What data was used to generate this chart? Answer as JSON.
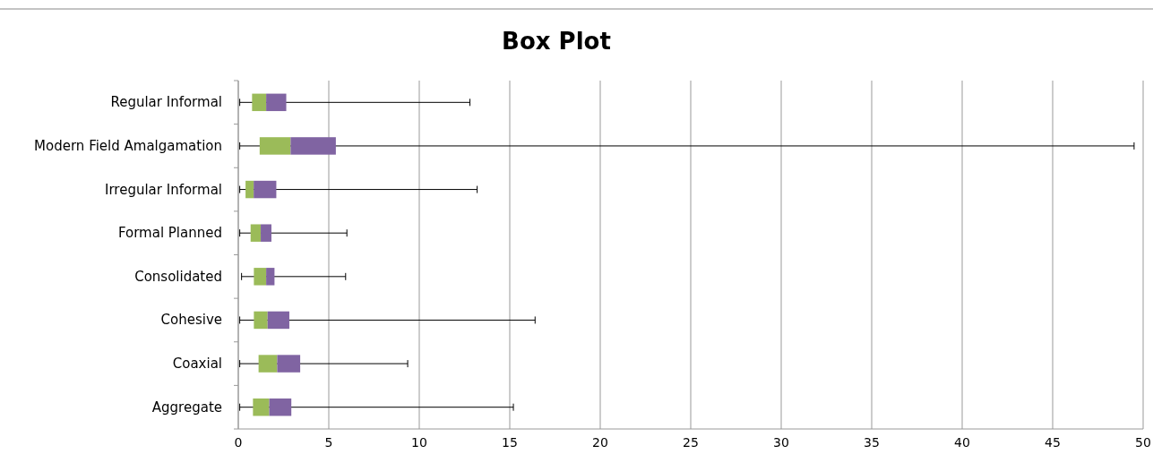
{
  "chart_data": {
    "type": "box",
    "title": "Box Plot",
    "orientation": "horizontal",
    "categories": [
      "Regular Informal",
      "Modern Field Amalgamation",
      "Irregular Informal",
      "Formal Planned",
      "Consolidated",
      "Cohesive",
      "Coaxial",
      "Aggregate"
    ],
    "boxes": [
      {
        "low": 0.08,
        "q1": 0.76,
        "median": 1.54,
        "q3": 2.65,
        "high": 12.8
      },
      {
        "low": 0.08,
        "q1": 1.18,
        "median": 2.89,
        "q3": 5.39,
        "high": 49.5
      },
      {
        "low": 0.08,
        "q1": 0.4,
        "median": 0.85,
        "q3": 2.1,
        "high": 13.2
      },
      {
        "low": 0.08,
        "q1": 0.68,
        "median": 1.24,
        "q3": 1.83,
        "high": 6.0
      },
      {
        "low": 0.18,
        "q1": 0.86,
        "median": 1.54,
        "q3": 2.0,
        "high": 5.93
      },
      {
        "low": 0.08,
        "q1": 0.86,
        "median": 1.62,
        "q3": 2.82,
        "high": 16.4
      },
      {
        "low": 0.08,
        "q1": 1.12,
        "median": 2.15,
        "q3": 3.42,
        "high": 9.36
      },
      {
        "low": 0.08,
        "q1": 0.81,
        "median": 1.71,
        "q3": 2.93,
        "high": 15.2
      }
    ],
    "colors": [
      [
        "#9bbb59",
        "#8064a2"
      ],
      [
        "#9bbb59",
        "#8064a2"
      ],
      [
        "#9bbb59",
        "#8064a2"
      ],
      [
        "#9bbb59",
        "#8064a2"
      ],
      [
        "#9bbb59",
        "#8064a2"
      ],
      [
        "#9bbb59",
        "#8064a2"
      ],
      [
        "#9bbb59",
        "#8064a2"
      ],
      [
        "#9bbb59",
        "#8064a2"
      ]
    ],
    "xlim": [
      0,
      50
    ],
    "xticks": [
      0,
      5,
      10,
      15,
      20,
      25,
      30,
      35,
      40,
      45,
      50
    ],
    "grid": "x"
  }
}
